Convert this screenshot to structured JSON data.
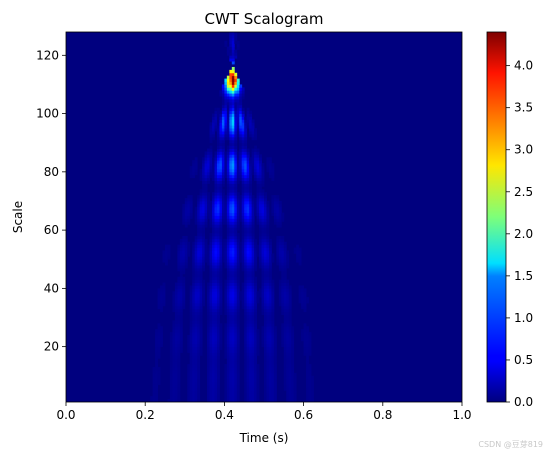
{
  "chart_data": {
    "type": "heatmap",
    "title": "CWT Scalogram",
    "xlabel": "Time (s)",
    "ylabel": "Scale",
    "xlim": [
      0.0,
      1.0
    ],
    "ylim": [
      1,
      128
    ],
    "x_ticks": [
      "0.0",
      "0.2",
      "0.4",
      "0.6",
      "0.8",
      "1.0"
    ],
    "y_ticks": [
      "20",
      "40",
      "60",
      "80",
      "100",
      "120"
    ],
    "colormap": "jet",
    "colorbar": {
      "vmin": 0.0,
      "vmax": 4.4,
      "ticks": [
        "0.0",
        "0.5",
        "1.0",
        "1.5",
        "2.0",
        "2.5",
        "3.0",
        "3.5",
        "4.0"
      ]
    },
    "feature": {
      "description_values": {
        "center_time": 0.42,
        "peak_scale": 112,
        "peak_value": 4.4,
        "cone_left_at_scale_1": 0.15,
        "cone_right_at_scale_1": 0.72
      }
    }
  },
  "watermark": "CSDN @豆芽819"
}
